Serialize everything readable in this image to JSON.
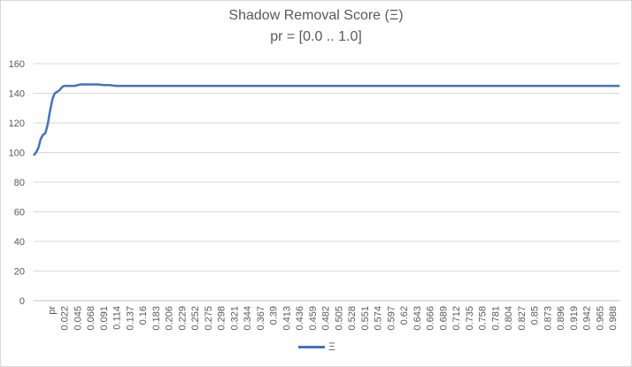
{
  "chart_data": {
    "type": "line",
    "title": "Shadow Removal Score (Ξ)",
    "subtitle": "pr = [0.0 .. 1.0]",
    "xlabel": "",
    "ylabel": "",
    "ylim": [
      0,
      160
    ],
    "yticks": [
      0,
      20,
      40,
      60,
      80,
      100,
      120,
      140,
      160
    ],
    "grid": true,
    "legend_position": "bottom",
    "color": "#4472c4",
    "x_tick_labels": [
      "pr",
      "0.022",
      "0.045",
      "0.068",
      "0.091",
      "0.114",
      "0.137",
      "0.16",
      "0.183",
      "0.206",
      "0.229",
      "0.252",
      "0.275",
      "0.298",
      "0.321",
      "0.344",
      "0.367",
      "0.39",
      "0.413",
      "0.436",
      "0.459",
      "0.482",
      "0.505",
      "0.528",
      "0.551",
      "0.574",
      "0.597",
      "0.62",
      "0.643",
      "0.666",
      "0.689",
      "0.712",
      "0.735",
      "0.758",
      "0.781",
      "0.804",
      "0.827",
      "0.85",
      "0.873",
      "0.896",
      "0.919",
      "0.942",
      "0.965",
      "0.988"
    ],
    "series": [
      {
        "name": "Ξ",
        "x": [
          0.0,
          0.004,
          0.008,
          0.012,
          0.016,
          0.02,
          0.024,
          0.028,
          0.032,
          0.036,
          0.04,
          0.044,
          0.048,
          0.052,
          0.056,
          0.06,
          0.064,
          0.07,
          0.08,
          0.09,
          0.1,
          0.11,
          0.12,
          0.13,
          0.14,
          0.16,
          0.2,
          0.3,
          0.4,
          0.5,
          0.6,
          0.7,
          0.8,
          0.9,
          1.0
        ],
        "values": [
          98,
          100,
          103,
          109,
          112,
          113,
          119,
          128,
          136,
          140,
          141,
          142,
          144,
          145,
          145,
          145,
          145,
          145,
          146,
          146,
          146,
          146,
          145.5,
          145.5,
          145,
          145,
          145,
          145,
          145,
          145,
          145,
          145,
          145,
          145,
          145
        ]
      }
    ]
  }
}
